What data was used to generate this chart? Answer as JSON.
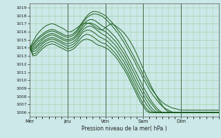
{
  "title": "",
  "xlabel": "Pression niveau de la mer( hPa )",
  "ylabel": "",
  "background_color": "#cce8e8",
  "grid_color": "#99cc99",
  "line_color": "#1a5c1a",
  "ylim": [
    1005.5,
    1019.5
  ],
  "yticks": [
    1006,
    1007,
    1008,
    1009,
    1010,
    1011,
    1012,
    1013,
    1014,
    1015,
    1016,
    1017,
    1018,
    1019
  ],
  "xtick_labels": [
    "Mer",
    "Jeu",
    "Ven",
    "Sam",
    "Dim"
  ],
  "xtick_positions": [
    0,
    24,
    48,
    72,
    96
  ],
  "day_lines": [
    0,
    24,
    48,
    72,
    96
  ],
  "num_hours": 120,
  "lines": [
    {
      "x": [
        0,
        2,
        4,
        6,
        8,
        10,
        12,
        14,
        16,
        18,
        20,
        22,
        24,
        26,
        28,
        30,
        32,
        34,
        36,
        38,
        40,
        42,
        44,
        46,
        48,
        50,
        52,
        54,
        56,
        58,
        60,
        62,
        64,
        66,
        68,
        70,
        72,
        74,
        76,
        78,
        80,
        82,
        84,
        86,
        88,
        90,
        92,
        94,
        96,
        98,
        100,
        102,
        104,
        106,
        108,
        110,
        112,
        114,
        116,
        118,
        120
      ],
      "y": [
        1014.0,
        1014.5,
        1015.0,
        1015.4,
        1015.7,
        1016.0,
        1016.2,
        1016.3,
        1016.2,
        1016.0,
        1015.8,
        1015.6,
        1015.5,
        1015.6,
        1015.8,
        1016.2,
        1016.8,
        1017.4,
        1017.9,
        1018.3,
        1018.5,
        1018.5,
        1018.4,
        1018.2,
        1018.0,
        1017.6,
        1017.2,
        1016.7,
        1016.2,
        1015.7,
        1015.1,
        1014.4,
        1013.7,
        1013.0,
        1012.2,
        1011.5,
        1010.7,
        1010.0,
        1009.3,
        1008.7,
        1008.2,
        1007.7,
        1007.3,
        1007.0,
        1006.8,
        1006.6,
        1006.5,
        1006.4,
        1006.3,
        1006.3,
        1006.3,
        1006.3,
        1006.3,
        1006.3,
        1006.3,
        1006.3,
        1006.3,
        1006.3,
        1006.3,
        1006.3,
        1006.3
      ]
    },
    {
      "x": [
        0,
        2,
        4,
        6,
        8,
        10,
        12,
        14,
        16,
        18,
        20,
        22,
        24,
        26,
        28,
        30,
        32,
        34,
        36,
        38,
        40,
        42,
        44,
        46,
        48,
        50,
        52,
        54,
        56,
        58,
        60,
        62,
        64,
        66,
        68,
        70,
        72,
        74,
        76,
        78,
        80,
        82,
        84,
        86,
        88,
        90,
        92,
        94,
        96,
        98,
        100,
        102,
        104,
        106,
        108,
        110,
        112,
        114,
        116,
        118,
        120
      ],
      "y": [
        1014.0,
        1014.3,
        1014.8,
        1015.2,
        1015.5,
        1015.8,
        1016.0,
        1016.1,
        1016.0,
        1015.8,
        1015.6,
        1015.4,
        1015.3,
        1015.4,
        1015.6,
        1016.0,
        1016.6,
        1017.2,
        1017.7,
        1018.0,
        1018.2,
        1018.2,
        1018.1,
        1017.9,
        1017.6,
        1017.2,
        1016.8,
        1016.3,
        1015.8,
        1015.2,
        1014.6,
        1013.9,
        1013.2,
        1012.5,
        1011.7,
        1011.0,
        1010.2,
        1009.5,
        1008.8,
        1008.2,
        1007.7,
        1007.2,
        1006.8,
        1006.5,
        1006.3,
        1006.1,
        1006.0,
        1006.0,
        1006.0,
        1006.0,
        1006.0,
        1006.0,
        1006.0,
        1006.0,
        1006.0,
        1006.0,
        1006.0,
        1006.0,
        1006.0,
        1006.0,
        1006.0
      ]
    },
    {
      "x": [
        0,
        2,
        4,
        6,
        8,
        10,
        12,
        14,
        16,
        18,
        20,
        22,
        24,
        26,
        28,
        30,
        32,
        34,
        36,
        38,
        40,
        42,
        44,
        46,
        48,
        50,
        52,
        54,
        56,
        58,
        60,
        62,
        64,
        66,
        68,
        70,
        72,
        74,
        76,
        78,
        80,
        82,
        84,
        86,
        88,
        90,
        92,
        94,
        96,
        98,
        100,
        102,
        104,
        106,
        108,
        110,
        112,
        114,
        116,
        118,
        120
      ],
      "y": [
        1014.0,
        1014.1,
        1014.5,
        1014.9,
        1015.2,
        1015.5,
        1015.7,
        1015.8,
        1015.7,
        1015.5,
        1015.3,
        1015.1,
        1015.0,
        1015.1,
        1015.3,
        1015.7,
        1016.3,
        1016.9,
        1017.3,
        1017.5,
        1017.5,
        1017.3,
        1017.0,
        1016.7,
        1016.5,
        1016.2,
        1015.8,
        1015.4,
        1014.9,
        1014.3,
        1013.7,
        1013.0,
        1012.3,
        1011.5,
        1010.8,
        1010.0,
        1009.2,
        1008.5,
        1007.8,
        1007.2,
        1006.7,
        1006.3,
        1006.0,
        1006.0,
        1006.0,
        1006.0,
        1006.0,
        1006.0,
        1006.0,
        1006.0,
        1006.0,
        1006.0,
        1006.0,
        1006.0,
        1006.0,
        1006.0,
        1006.0,
        1006.0,
        1006.0,
        1006.0,
        1006.0
      ]
    },
    {
      "x": [
        0,
        2,
        4,
        6,
        8,
        10,
        12,
        14,
        16,
        18,
        20,
        22,
        24,
        26,
        28,
        30,
        32,
        34,
        36,
        38,
        40,
        42,
        44,
        46,
        48,
        50,
        52,
        54,
        56,
        58,
        60,
        62,
        64,
        66,
        68,
        70,
        72,
        74,
        76,
        78,
        80,
        82,
        84,
        86,
        88,
        90,
        92,
        94,
        96,
        98,
        100,
        102,
        104,
        106,
        108,
        110,
        112,
        114,
        116,
        118,
        120
      ],
      "y": [
        1014.0,
        1013.9,
        1014.2,
        1014.6,
        1015.0,
        1015.3,
        1015.5,
        1015.6,
        1015.5,
        1015.3,
        1015.1,
        1014.9,
        1014.8,
        1014.9,
        1015.1,
        1015.5,
        1016.1,
        1016.6,
        1017.0,
        1017.1,
        1017.0,
        1016.8,
        1016.5,
        1016.2,
        1016.0,
        1015.7,
        1015.3,
        1014.9,
        1014.4,
        1013.8,
        1013.2,
        1012.5,
        1011.7,
        1011.0,
        1010.2,
        1009.4,
        1008.7,
        1008.0,
        1007.4,
        1006.9,
        1006.4,
        1006.1,
        1006.0,
        1006.0,
        1006.0,
        1006.0,
        1006.0,
        1006.0,
        1006.0,
        1006.0,
        1006.0,
        1006.0,
        1006.0,
        1006.0,
        1006.0,
        1006.0,
        1006.0,
        1006.0,
        1006.0,
        1006.0,
        1006.0
      ]
    },
    {
      "x": [
        0,
        2,
        4,
        6,
        8,
        10,
        12,
        14,
        16,
        18,
        20,
        22,
        24,
        26,
        28,
        30,
        32,
        34,
        36,
        38,
        40,
        42,
        44,
        46,
        48,
        50,
        52,
        54,
        56,
        58,
        60,
        62,
        64,
        66,
        68,
        70,
        72,
        74,
        76,
        78,
        80,
        82,
        84,
        86,
        88,
        90,
        92,
        94,
        96,
        98,
        100,
        102,
        104,
        106,
        108,
        110,
        112,
        114,
        116,
        118,
        120
      ],
      "y": [
        1014.0,
        1013.7,
        1014.0,
        1014.4,
        1014.7,
        1015.0,
        1015.2,
        1015.3,
        1015.2,
        1015.0,
        1014.8,
        1014.6,
        1014.5,
        1014.6,
        1014.8,
        1015.2,
        1015.8,
        1016.3,
        1016.6,
        1016.7,
        1016.6,
        1016.3,
        1016.0,
        1015.7,
        1015.5,
        1015.2,
        1014.8,
        1014.4,
        1013.9,
        1013.3,
        1012.7,
        1012.0,
        1011.2,
        1010.4,
        1009.6,
        1008.9,
        1008.2,
        1007.5,
        1006.9,
        1006.4,
        1006.1,
        1006.0,
        1006.0,
        1006.0,
        1006.0,
        1006.0,
        1006.0,
        1006.0,
        1006.0,
        1006.0,
        1006.0,
        1006.0,
        1006.0,
        1006.0,
        1006.0,
        1006.0,
        1006.0,
        1006.0,
        1006.0,
        1006.0,
        1006.0
      ]
    },
    {
      "x": [
        0,
        2,
        4,
        6,
        8,
        10,
        12,
        14,
        16,
        18,
        20,
        22,
        24,
        26,
        28,
        30,
        32,
        34,
        36,
        38,
        40,
        42,
        44,
        46,
        48,
        50,
        52,
        54,
        56,
        58,
        60,
        62,
        64,
        66,
        68,
        70,
        72,
        74,
        76,
        78,
        80,
        82,
        84,
        86,
        88,
        90,
        92,
        94,
        96,
        98,
        100,
        102,
        104,
        106,
        108,
        110,
        112,
        114,
        116,
        118,
        120
      ],
      "y": [
        1014.0,
        1013.5,
        1013.7,
        1014.1,
        1014.5,
        1014.8,
        1015.0,
        1015.1,
        1015.0,
        1014.8,
        1014.6,
        1014.4,
        1014.2,
        1014.3,
        1014.5,
        1014.9,
        1015.5,
        1016.0,
        1016.2,
        1016.2,
        1016.0,
        1015.7,
        1015.4,
        1015.2,
        1015.0,
        1014.7,
        1014.3,
        1013.9,
        1013.4,
        1012.8,
        1012.2,
        1011.5,
        1010.7,
        1009.9,
        1009.1,
        1008.3,
        1007.7,
        1007.0,
        1006.5,
        1006.1,
        1006.0,
        1006.0,
        1006.0,
        1006.0,
        1006.0,
        1006.0,
        1006.0,
        1006.0,
        1006.0,
        1006.0,
        1006.0,
        1006.0,
        1006.0,
        1006.0,
        1006.0,
        1006.0,
        1006.0,
        1006.0,
        1006.0,
        1006.0,
        1006.0
      ]
    },
    {
      "x": [
        0,
        2,
        4,
        6,
        8,
        10,
        12,
        14,
        16,
        18,
        20,
        22,
        24,
        26,
        28,
        30,
        32,
        34,
        36,
        38,
        40,
        42,
        44,
        46,
        48,
        50,
        52,
        54,
        56,
        58,
        60,
        62,
        64,
        66,
        68,
        70,
        72,
        74,
        76,
        78,
        80,
        82,
        84,
        86,
        88,
        90,
        92,
        94,
        96,
        98,
        100,
        102,
        104,
        106,
        108,
        110,
        112,
        114,
        116,
        118,
        120
      ],
      "y": [
        1014.0,
        1013.2,
        1013.4,
        1013.8,
        1014.2,
        1014.5,
        1014.7,
        1014.8,
        1014.7,
        1014.5,
        1014.3,
        1014.1,
        1013.9,
        1014.0,
        1014.2,
        1014.6,
        1015.1,
        1015.5,
        1015.7,
        1015.6,
        1015.4,
        1015.1,
        1014.8,
        1014.6,
        1014.5,
        1014.2,
        1013.8,
        1013.4,
        1012.9,
        1012.3,
        1011.7,
        1011.0,
        1010.2,
        1009.4,
        1008.6,
        1007.8,
        1007.1,
        1006.5,
        1006.1,
        1006.0,
        1006.0,
        1006.0,
        1006.0,
        1006.0,
        1006.0,
        1006.0,
        1006.0,
        1006.0,
        1006.0,
        1006.0,
        1006.0,
        1006.0,
        1006.0,
        1006.0,
        1006.0,
        1006.0,
        1006.0,
        1006.0,
        1006.0,
        1006.0,
        1006.0
      ]
    },
    {
      "x": [
        0,
        2,
        4,
        6,
        8,
        10,
        12,
        14,
        16,
        18,
        20,
        22,
        24,
        26,
        28,
        30,
        32,
        34,
        36,
        38,
        40,
        42,
        44,
        46,
        48,
        50,
        52,
        54,
        56,
        58,
        60,
        62,
        64,
        66,
        68,
        70,
        72,
        74,
        76,
        78,
        80,
        82,
        84,
        86,
        88,
        90,
        92,
        94,
        96,
        98,
        100,
        102,
        104,
        106,
        108,
        110,
        112,
        114,
        116,
        118,
        120
      ],
      "y": [
        1014.0,
        1013.0,
        1013.1,
        1013.5,
        1013.9,
        1014.2,
        1014.4,
        1014.5,
        1014.4,
        1014.2,
        1014.0,
        1013.8,
        1013.6,
        1013.7,
        1013.9,
        1014.3,
        1014.7,
        1015.0,
        1015.1,
        1015.0,
        1014.8,
        1014.5,
        1014.3,
        1014.2,
        1014.0,
        1013.8,
        1013.4,
        1013.0,
        1012.5,
        1011.9,
        1011.3,
        1010.6,
        1009.8,
        1009.0,
        1008.2,
        1007.4,
        1006.8,
        1006.2,
        1006.0,
        1006.0,
        1006.0,
        1006.0,
        1006.0,
        1006.0,
        1006.0,
        1006.0,
        1006.0,
        1006.0,
        1006.0,
        1006.0,
        1006.0,
        1006.0,
        1006.0,
        1006.0,
        1006.0,
        1006.0,
        1006.0,
        1006.0,
        1006.0,
        1006.0,
        1006.0
      ]
    },
    {
      "x": [
        0,
        2,
        4,
        6,
        8,
        10,
        12,
        14,
        16,
        18,
        20,
        22,
        24,
        26,
        28,
        30,
        32,
        34,
        36,
        38,
        40,
        42,
        44,
        46,
        48,
        50,
        52,
        54,
        56,
        58,
        60,
        62,
        64,
        66,
        68,
        70,
        72,
        74,
        76,
        78,
        80,
        82,
        84,
        86,
        88,
        90,
        92,
        94,
        96,
        98,
        100,
        102,
        104,
        106,
        108,
        110,
        112,
        114,
        116,
        118,
        120
      ],
      "y": [
        1014.0,
        1014.8,
        1015.5,
        1016.0,
        1016.4,
        1016.7,
        1016.9,
        1017.0,
        1016.9,
        1016.7,
        1016.5,
        1016.3,
        1016.0,
        1016.0,
        1016.2,
        1016.5,
        1016.8,
        1017.0,
        1017.1,
        1017.0,
        1016.8,
        1016.5,
        1016.3,
        1016.2,
        1016.5,
        1016.8,
        1017.0,
        1016.8,
        1016.5,
        1016.2,
        1015.8,
        1015.3,
        1014.7,
        1014.0,
        1013.2,
        1012.3,
        1011.4,
        1010.5,
        1009.7,
        1008.9,
        1008.2,
        1007.5,
        1006.9,
        1006.4,
        1006.1,
        1006.0,
        1006.0,
        1006.0,
        1006.0,
        1006.0,
        1006.0,
        1006.0,
        1006.0,
        1006.0,
        1006.0,
        1006.0,
        1006.0,
        1006.0,
        1006.0,
        1006.0,
        1006.0
      ]
    }
  ]
}
